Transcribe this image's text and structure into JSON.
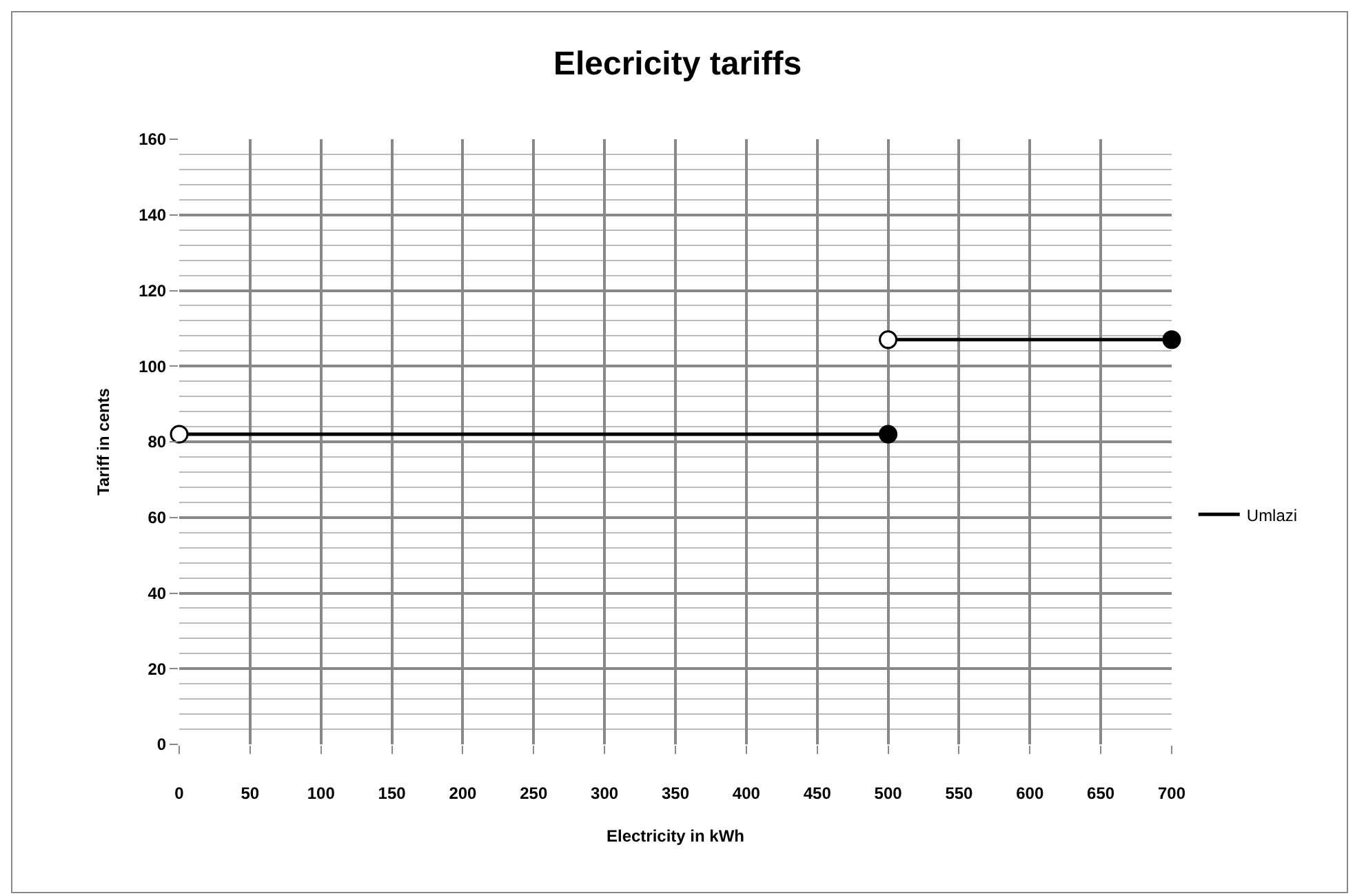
{
  "chart_data": {
    "type": "line",
    "title": "Elecricity tariffs",
    "xlabel": "Electricity in kWh",
    "ylabel": "Tariff in cents",
    "xlim": [
      0,
      700
    ],
    "xticks": [
      0,
      50,
      100,
      150,
      200,
      250,
      300,
      350,
      400,
      450,
      500,
      550,
      600,
      650,
      700
    ],
    "ylim": [
      0,
      160
    ],
    "yticks": [
      0,
      20,
      40,
      60,
      80,
      100,
      120,
      140,
      160
    ],
    "grid": true,
    "legend": "right",
    "marker": "none",
    "line_style": "solid",
    "series": [
      {
        "name": "Umlazi",
        "color": "#000000",
        "x": [
          0,
          500
        ],
        "values": [
          82,
          82
        ]
      },
      {
        "color": "#000000",
        "x": [
          500,
          700
        ],
        "values": [
          107,
          107
        ]
      },
      {
        "type": "scatter",
        "marker": "circle",
        "color": "#ffffff",
        "x": [
          0,
          500
        ],
        "values": [
          82,
          107
        ]
      },
      {
        "type": "scatter",
        "marker": "circle",
        "color": "#000000",
        "x": [
          500,
          700
        ],
        "values": [
          82,
          107
        ]
      }
    ]
  }
}
